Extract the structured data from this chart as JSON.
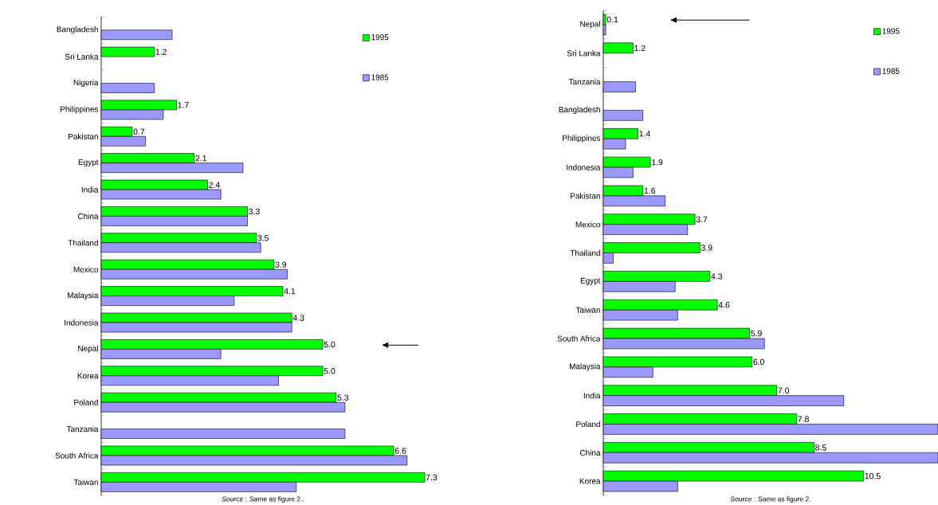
{
  "chart_data": [
    {
      "type": "bar",
      "orientation": "horizontal",
      "legend": "top right",
      "categories": [
        "Bangladesh",
        "Sri Lanka",
        "Nigeria",
        "Philippines",
        "Pakistan",
        "Egypt",
        "India",
        "China",
        "Thailand",
        "Mexico",
        "Malaysia",
        "Indonesia",
        "Nepal",
        "Korea",
        "Poland",
        "Tanzania",
        "South Africa",
        "Taiwan"
      ],
      "series": [
        {
          "name": "1995",
          "color": "#00ff00",
          "values": [
            null,
            1.2,
            null,
            1.7,
            0.7,
            2.1,
            2.4,
            3.3,
            3.5,
            3.9,
            4.1,
            4.3,
            5.0,
            5.0,
            5.3,
            null,
            6.6,
            7.3
          ],
          "value_labels": [
            null,
            "1.2",
            null,
            "1.7",
            "0.7",
            "2.1",
            "2.4",
            "3.3",
            "3.5",
            "3.9",
            "4.1",
            "4.3",
            "5.0",
            "5.0",
            "5.3",
            null,
            "6.6",
            "7.3"
          ]
        },
        {
          "name": "1985",
          "color": "#9999ff",
          "values": [
            1.6,
            null,
            1.2,
            1.4,
            1.0,
            3.2,
            2.7,
            3.3,
            3.6,
            4.2,
            3.0,
            4.3,
            2.7,
            4.0,
            5.5,
            5.5,
            6.9,
            4.4
          ]
        }
      ],
      "annotations": [
        "*Source* : Same as figure 2.."
      ]
    },
    {
      "type": "bar",
      "orientation": "horizontal",
      "legend": "top right",
      "categories": [
        "Nepal",
        "Sri Lanka",
        "Tanzania",
        "Bangladesh",
        "Philippines",
        "Indonesia",
        "Pakistan",
        "Mexico",
        "Thailand",
        "Egypt",
        "Taiwan",
        "South Africa",
        "Malaysia",
        "India",
        "Poland",
        "China",
        "Korea"
      ],
      "series": [
        {
          "name": "1995",
          "color": "#00ff00",
          "values": [
            0.1,
            1.2,
            null,
            null,
            1.4,
            1.9,
            1.6,
            3.7,
            3.9,
            4.3,
            4.6,
            5.9,
            6.0,
            7.0,
            7.8,
            8.5,
            10.5
          ],
          "value_labels": [
            "0.1",
            "1.2",
            null,
            null,
            "1.4",
            "1.9",
            "1.6",
            "3.7",
            "3.9",
            "4.3",
            "4.6",
            "5.9",
            "6.0",
            "7.0",
            "7.8",
            "8.5",
            "10.5"
          ]
        },
        {
          "name": "1985",
          "color": "#9999ff",
          "values": [
            0.1,
            null,
            1.3,
            1.6,
            0.9,
            1.2,
            2.5,
            3.4,
            0.4,
            2.9,
            3.0,
            6.5,
            2.0,
            9.7,
            13.5,
            13.5,
            3.0
          ]
        }
      ],
      "annotations": [
        "Source : Same as figure 2."
      ]
    }
  ]
}
